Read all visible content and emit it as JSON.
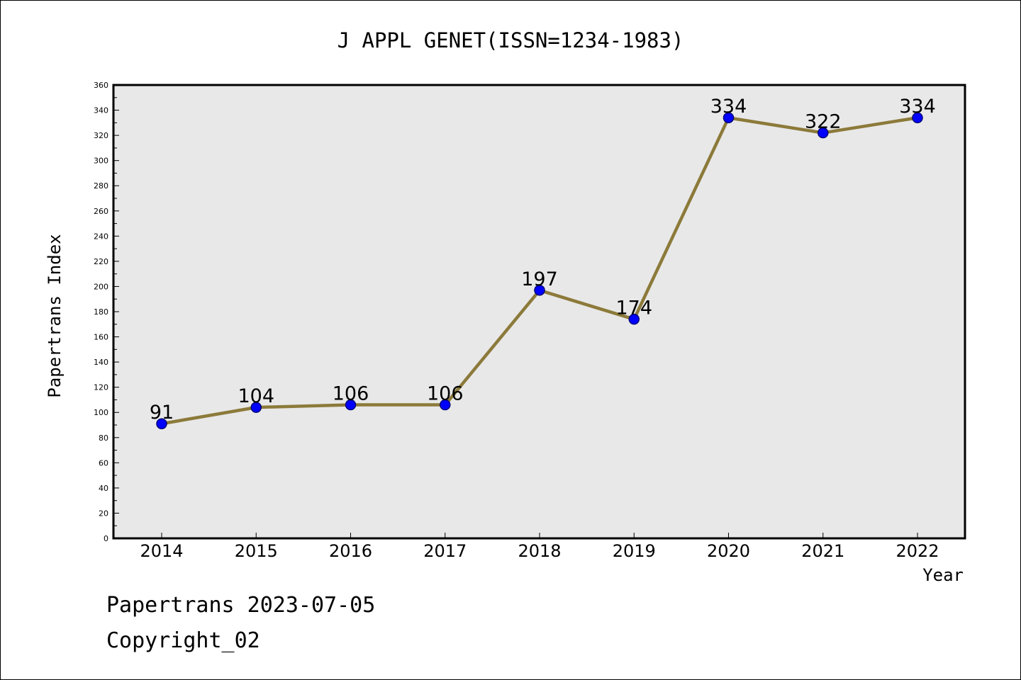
{
  "colors": {
    "plot_background": "#e8e8e8",
    "line": "#8c7a3a",
    "marker_fill": "#0000ff",
    "marker_stroke": "#00007a",
    "axis": "#000000"
  },
  "footer": {
    "line1": "Papertrans 2023-07-05",
    "line2": "Copyright_02"
  },
  "chart_data": {
    "type": "line",
    "title": "J APPL GENET(ISSN=1234-1983)",
    "xlabel": "Year",
    "ylabel": "Papertrans Index",
    "categories": [
      "2014",
      "2015",
      "2016",
      "2017",
      "2018",
      "2019",
      "2020",
      "2021",
      "2022"
    ],
    "series": [
      {
        "values": [
          91,
          104,
          106,
          106,
          197,
          174,
          334,
          322,
          334
        ]
      }
    ],
    "data_labels": [
      "91",
      "104",
      "106",
      "106",
      "197",
      "174",
      "334",
      "322",
      "334"
    ],
    "ylim": [
      0,
      360
    ],
    "yticks": [
      0,
      20,
      40,
      60,
      80,
      100,
      120,
      140,
      160,
      180,
      200,
      220,
      240,
      260,
      280,
      300,
      320,
      340,
      360
    ],
    "ytick_labels": [
      "0",
      "20",
      "40",
      "60",
      "80",
      "100",
      "120",
      "140",
      "160",
      "180",
      "200",
      "220",
      "240",
      "260",
      "280",
      "300",
      "320",
      "340",
      "360"
    ],
    "grid": false,
    "legend": "none"
  }
}
